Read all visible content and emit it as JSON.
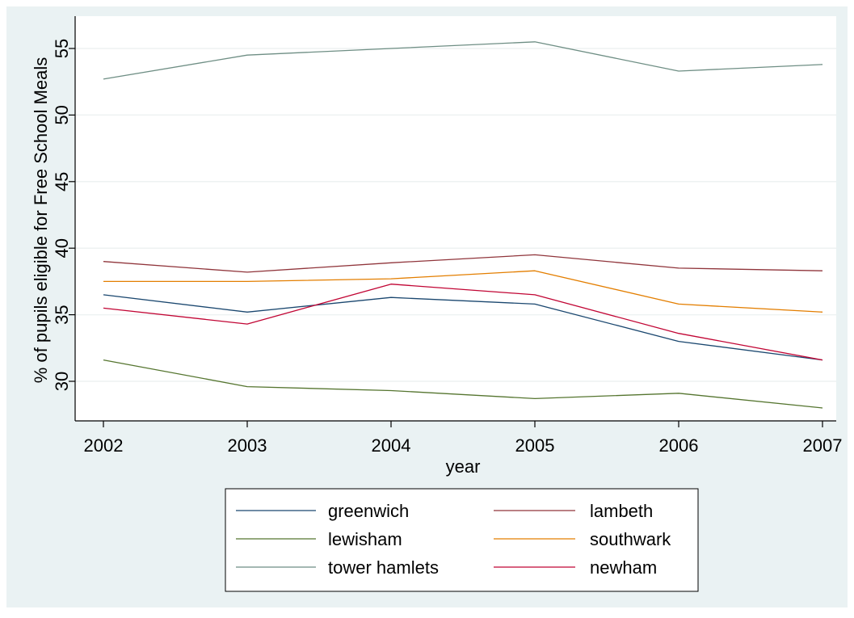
{
  "chart_data": {
    "type": "line",
    "xlabel": "year",
    "ylabel": "% of pupils eligible for Free School Meals",
    "x": [
      2002,
      2003,
      2004,
      2005,
      2006,
      2007
    ],
    "xlim": [
      2002,
      2007
    ],
    "ylim": [
      27.5,
      56.5
    ],
    "yticks": [
      30,
      35,
      40,
      45,
      50,
      55
    ],
    "xticks": [
      2002,
      2003,
      2004,
      2005,
      2006,
      2007
    ],
    "grid": "horizontal",
    "legend_position": "bottom",
    "series": [
      {
        "name": "greenwich",
        "color": "#1a476f",
        "values": [
          36.5,
          35.2,
          36.3,
          35.8,
          33.0,
          31.6
        ]
      },
      {
        "name": "lambeth",
        "color": "#90353b",
        "values": [
          39.0,
          38.2,
          38.9,
          39.5,
          38.5,
          38.3
        ]
      },
      {
        "name": "lewisham",
        "color": "#55752f",
        "values": [
          31.6,
          29.6,
          29.3,
          28.7,
          29.1,
          28.0
        ]
      },
      {
        "name": "southwark",
        "color": "#e37e00",
        "values": [
          37.5,
          37.5,
          37.7,
          38.3,
          35.8,
          35.2
        ]
      },
      {
        "name": "tower hamlets",
        "color": "#6e8e84",
        "values": [
          52.7,
          54.5,
          55.0,
          55.5,
          53.3,
          53.8
        ]
      },
      {
        "name": "newham",
        "color": "#c10534",
        "values": [
          35.5,
          34.3,
          37.3,
          36.5,
          33.6,
          31.6
        ]
      }
    ]
  }
}
